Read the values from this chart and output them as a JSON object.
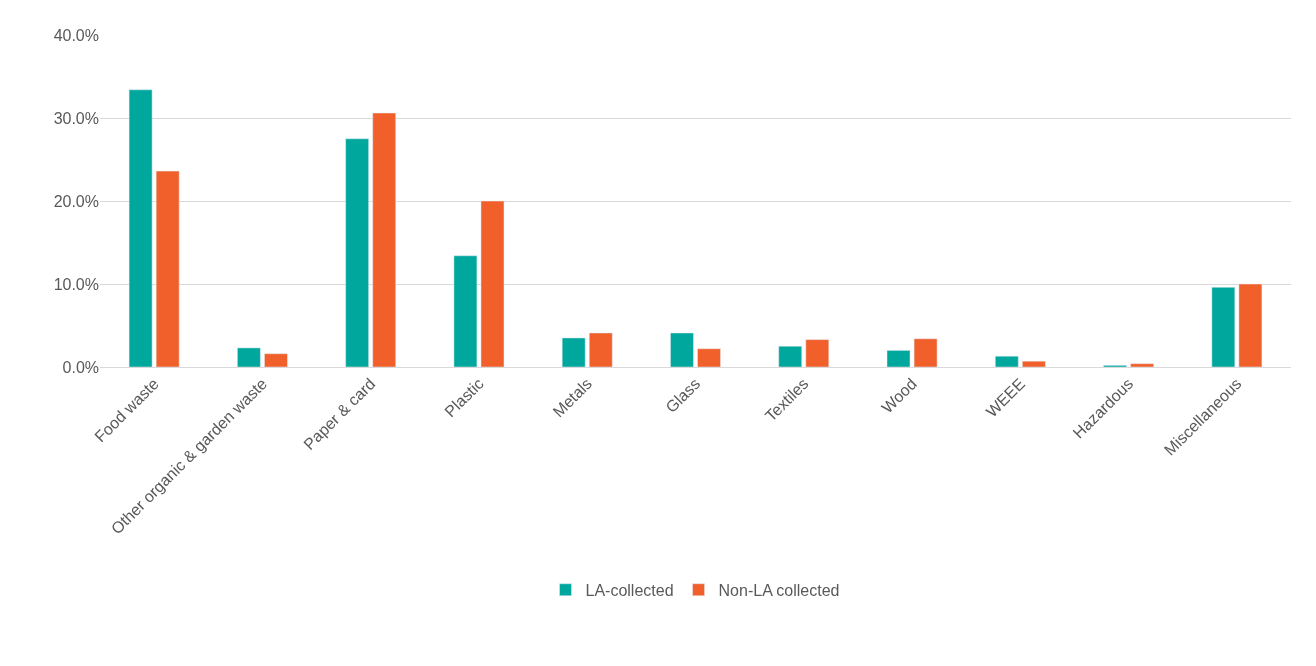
{
  "chart_data": {
    "type": "bar",
    "categories": [
      "Food waste",
      "Other organic & garden waste",
      "Paper & card",
      "Plastic",
      "Metals",
      "Glass",
      "Textiles",
      "Wood",
      "WEEE",
      "Hazardous",
      "Miscellaneous"
    ],
    "series": [
      {
        "name": "LA-collected",
        "color": "#00a79d",
        "values": [
          33.4,
          2.3,
          27.5,
          13.4,
          3.5,
          4.1,
          2.5,
          2.0,
          1.3,
          0.2,
          9.6
        ]
      },
      {
        "name": "Non-LA collected",
        "color": "#f15f2a",
        "values": [
          23.6,
          1.6,
          30.6,
          20.0,
          4.1,
          2.2,
          3.3,
          3.4,
          0.7,
          0.4,
          10.0
        ]
      }
    ],
    "ylim": [
      0,
      40
    ],
    "yticks": [
      {
        "value": 0,
        "label": "0.0%"
      },
      {
        "value": 10,
        "label": "10.0%"
      },
      {
        "value": 20,
        "label": "20.0%"
      },
      {
        "value": 30,
        "label": "30.0%"
      },
      {
        "value": 40,
        "label": "40.0%"
      }
    ],
    "grid": "y",
    "legend": "bottom"
  }
}
